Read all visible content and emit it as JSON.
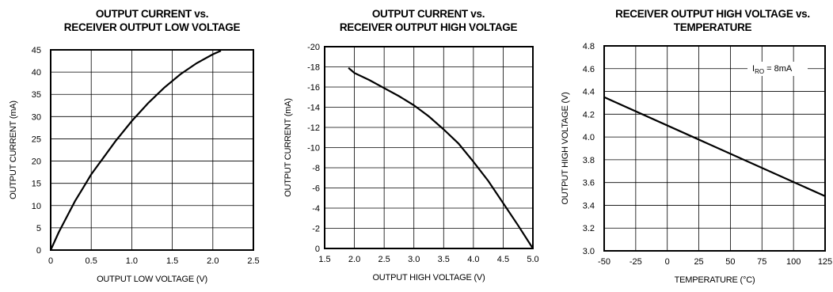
{
  "chart_data": [
    {
      "type": "line",
      "title": [
        "OUTPUT CURRENT vs.",
        "RECEIVER OUTPUT LOW VOLTAGE"
      ],
      "xlabel": "OUTPUT LOW VOLTAGE (V)",
      "ylabel": "OUTPUT CURRENT (mA)",
      "xlim": [
        0,
        2.5
      ],
      "ylim": [
        0,
        45
      ],
      "x_ticks": [
        "0",
        "0.5",
        "1.0",
        "1.5",
        "2.0",
        "2.5"
      ],
      "y_ticks": [
        "0",
        "5",
        "10",
        "15",
        "20",
        "25",
        "30",
        "35",
        "40",
        "45"
      ],
      "grid": true,
      "series": [
        {
          "x": [
            0,
            0.1,
            0.2,
            0.3,
            0.4,
            0.5,
            0.6,
            0.8,
            1.0,
            1.2,
            1.4,
            1.6,
            1.8,
            2.0,
            2.1
          ],
          "y": [
            0,
            4,
            7.5,
            11,
            14,
            17,
            19.5,
            24.5,
            29,
            33,
            36.5,
            39.5,
            42,
            44,
            44.8
          ]
        }
      ]
    },
    {
      "type": "line",
      "title": [
        "OUTPUT CURRENT vs.",
        "RECEIVER OUTPUT HIGH VOLTAGE"
      ],
      "xlabel": "OUTPUT HIGH VOLTAGE (V)",
      "ylabel": "OUTPUT CURRENT (mA)",
      "xlim": [
        1.5,
        5.0
      ],
      "ylim": [
        0,
        -20
      ],
      "x_ticks": [
        "1.5",
        "2.0",
        "2.5",
        "3.0",
        "3.5",
        "4.0",
        "4.5",
        "5.0"
      ],
      "y_ticks": [
        "0",
        "-2",
        "-4",
        "-6",
        "-8",
        "-10",
        "-12",
        "-14",
        "-16",
        "-18",
        "-20"
      ],
      "grid": true,
      "series": [
        {
          "x": [
            1.9,
            2.0,
            2.25,
            2.5,
            2.75,
            3.0,
            3.25,
            3.5,
            3.75,
            4.0,
            4.25,
            4.5,
            4.75,
            5.0
          ],
          "y": [
            -17.9,
            -17.4,
            -16.7,
            -15.9,
            -15.1,
            -14.2,
            -13.1,
            -11.8,
            -10.4,
            -8.6,
            -6.7,
            -4.5,
            -2.3,
            0
          ]
        }
      ]
    },
    {
      "type": "line",
      "title": [
        "RECEIVER OUTPUT HIGH VOLTAGE vs.",
        "TEMPERATURE"
      ],
      "xlabel": "TEMPERATURE (°C)",
      "ylabel": "OUTPUT HIGH VOLTAGE (V)",
      "xlim": [
        -50,
        125
      ],
      "ylim": [
        3.0,
        4.8
      ],
      "x_ticks": [
        "-50",
        "-25",
        "0",
        "25",
        "50",
        "75",
        "100",
        "125"
      ],
      "y_ticks": [
        "3.0",
        "3.2",
        "3.4",
        "3.6",
        "3.8",
        "4.0",
        "4.2",
        "4.4",
        "4.6",
        "4.8"
      ],
      "grid": true,
      "annotation": {
        "main": "I",
        "sub": "RO",
        "rest": " = 8mA"
      },
      "series": [
        {
          "x": [
            -50,
            125
          ],
          "y": [
            4.35,
            3.48
          ]
        }
      ]
    }
  ]
}
